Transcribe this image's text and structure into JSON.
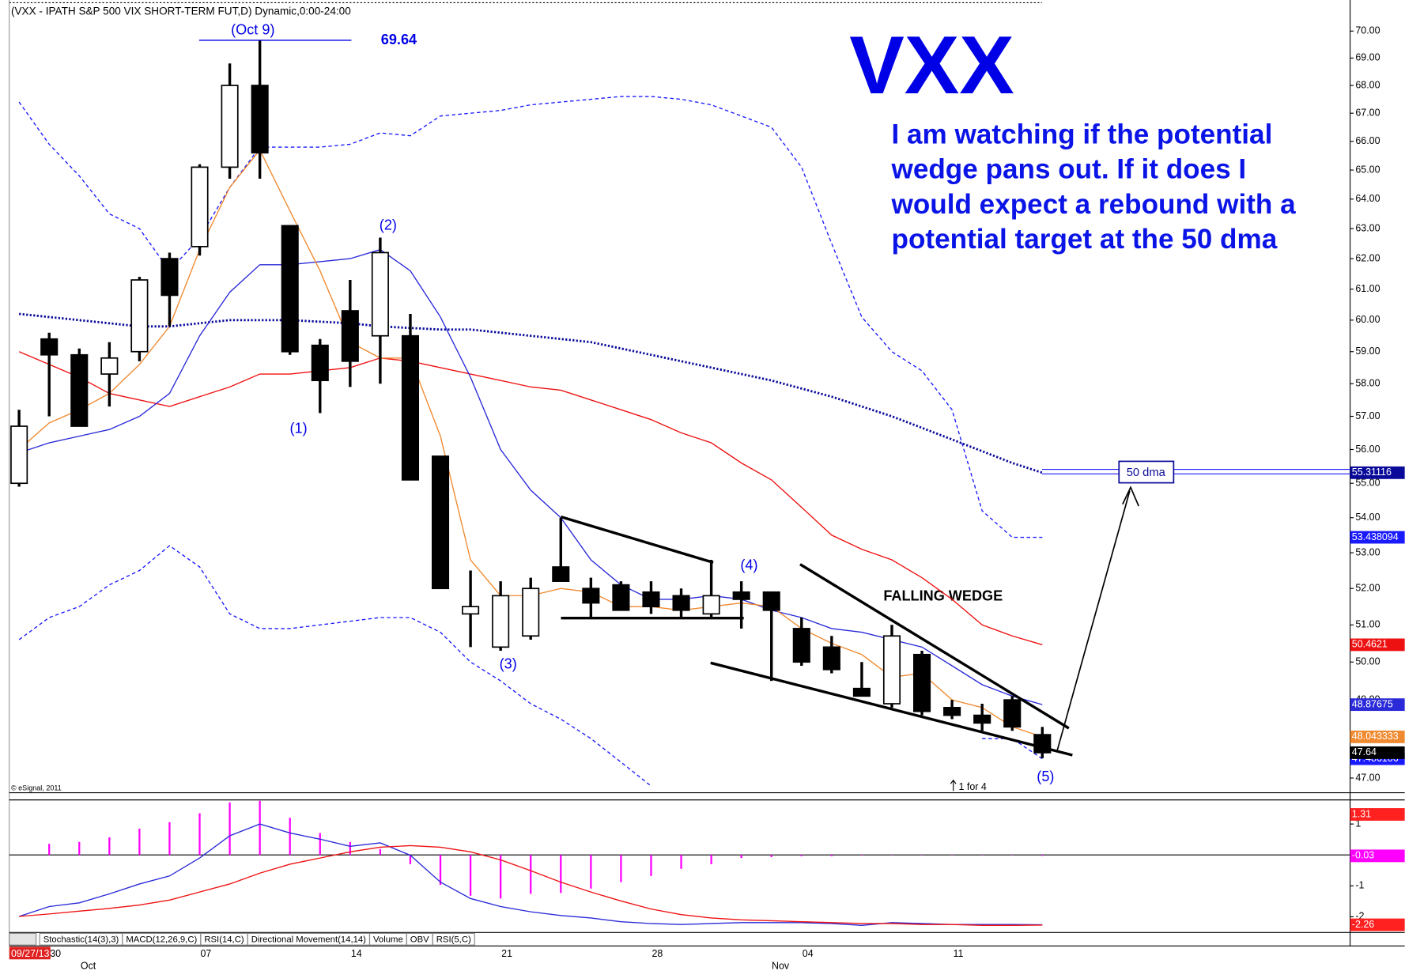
{
  "header": "(VXX - IPATH S&P 500 VIX SHORT-TERM FUT,D) Dynamic,0:00-24:00",
  "tabs": [
    "Stochastic(14(3),3)",
    "MACD(12,26,9,C)",
    "RSI(14,C)",
    "Directional Movement(14,14)",
    "Volume",
    "OBV",
    "RSI(5,C)"
  ],
  "copyright": "© eSignal, 2011",
  "chart_data": [
    {
      "type": "candlestick",
      "title": "VXX",
      "note_lines": [
        "I am watching if the potential",
        "wedge pans out. If it does I",
        "would expect a rebound with a",
        "potential target at the 50 dma"
      ],
      "annotations": {
        "peak": "(Oct 9)",
        "wave1": "(1)",
        "wave2": "(2)",
        "wave3": "(3)",
        "wave4": "(4)",
        "wave5": "(5)",
        "pattern": "FALLING WEDGE",
        "target": "50 dma",
        "split": "1 for 4"
      },
      "cursor_date": "09/27/13",
      "categories": [
        null,
        "30",
        null,
        null,
        null,
        null,
        "07",
        null,
        null,
        null,
        null,
        "14",
        null,
        null,
        null,
        null,
        "21",
        null,
        null,
        null,
        null,
        "28",
        null,
        null,
        null,
        null,
        "04",
        null,
        null,
        null,
        null,
        "11",
        null,
        null,
        null
      ],
      "months": [
        null,
        null,
        "Oct",
        null,
        null,
        null,
        null,
        null,
        null,
        null,
        null,
        null,
        null,
        null,
        null,
        null,
        null,
        null,
        null,
        null,
        null,
        null,
        null,
        null,
        null,
        "Nov",
        null,
        null,
        null,
        null,
        null,
        null,
        null,
        null,
        null
      ],
      "open": [
        55.0,
        59.4,
        58.9,
        58.3,
        59.0,
        62.0,
        62.4,
        65.1,
        68.0,
        63.1,
        59.2,
        60.3,
        59.5,
        59.5,
        55.8,
        51.3,
        50.4,
        50.7,
        52.6,
        52.0,
        52.1,
        51.9,
        51.8,
        51.3,
        51.9,
        51.9,
        50.9,
        50.4,
        49.3,
        48.9,
        50.2,
        48.8,
        48.6,
        49.0,
        48.1
      ],
      "high": [
        57.2,
        59.6,
        59.1,
        59.3,
        61.4,
        62.2,
        65.2,
        68.8,
        69.64,
        63.1,
        59.4,
        61.3,
        62.7,
        60.2,
        55.8,
        52.5,
        52.2,
        52.3,
        54.0,
        52.3,
        52.2,
        52.2,
        52.0,
        52.8,
        52.2,
        51.9,
        51.2,
        50.7,
        50.0,
        51.0,
        50.3,
        49.0,
        48.9,
        49.1,
        48.3
      ],
      "low": [
        54.9,
        57.0,
        56.7,
        57.3,
        58.7,
        59.8,
        62.1,
        64.7,
        64.7,
        58.9,
        57.1,
        57.9,
        58.0,
        55.1,
        52.0,
        50.4,
        50.3,
        50.6,
        52.2,
        51.2,
        51.4,
        51.3,
        51.2,
        51.2,
        50.9,
        49.5,
        49.9,
        49.7,
        49.1,
        48.8,
        48.6,
        48.5,
        48.2,
        48.2,
        47.5
      ],
      "close": [
        56.7,
        58.9,
        56.7,
        58.8,
        61.3,
        60.8,
        65.1,
        68.0,
        65.6,
        59.0,
        58.1,
        58.7,
        62.2,
        55.1,
        52.0,
        51.5,
        51.8,
        52.0,
        52.2,
        51.6,
        51.4,
        51.5,
        51.4,
        51.8,
        51.7,
        51.4,
        50.0,
        49.8,
        49.1,
        50.7,
        48.7,
        48.6,
        48.4,
        48.3,
        47.64
      ],
      "close_label_color": "#000000",
      "series": [
        {
          "color": "#1a1aff",
          "style": "dashed",
          "values": [
            67.4,
            65.9,
            64.8,
            63.5,
            63.0,
            61.6,
            62.7,
            64.4,
            65.8,
            65.8,
            65.8,
            65.9,
            66.3,
            66.2,
            66.9,
            67.0,
            67.1,
            67.3,
            67.4,
            67.5,
            67.6,
            67.6,
            67.5,
            67.3,
            66.9,
            66.5,
            65.1,
            62.5,
            60.1,
            59.0,
            58.4,
            57.2,
            54.2,
            53.438094,
            53.438094
          ]
        },
        {
          "color": "#1a1aff",
          "style": "dashed",
          "values": [
            50.6,
            51.2,
            51.5,
            52.1,
            52.5,
            53.2,
            52.6,
            51.3,
            50.9,
            50.9,
            51.0,
            51.1,
            51.2,
            51.2,
            50.8,
            50.0,
            49.5,
            48.9,
            48.5,
            48.0,
            47.4,
            46.8,
            null,
            null,
            null,
            null,
            null,
            null,
            null,
            null,
            null,
            null,
            48.0,
            48.0,
            47.486106
          ]
        },
        {
          "color": "#ee1111",
          "style": "solid",
          "values": [
            59.0,
            58.6,
            58.2,
            57.7,
            57.5,
            57.3,
            57.6,
            57.9,
            58.3,
            58.3,
            58.4,
            58.5,
            58.8,
            58.7,
            58.5,
            58.3,
            58.1,
            57.9,
            57.8,
            57.5,
            57.2,
            56.9,
            56.5,
            56.2,
            55.6,
            55.1,
            54.3,
            53.5,
            53.1,
            52.8,
            52.3,
            51.7,
            51.0,
            50.7,
            50.4621
          ]
        },
        {
          "color": "#2a2ad8",
          "style": "solid",
          "values": [
            55.9,
            56.2,
            56.4,
            56.6,
            57.0,
            57.7,
            59.5,
            60.9,
            61.8,
            61.8,
            61.9,
            62.0,
            62.3,
            61.6,
            60.1,
            58.2,
            56.0,
            54.8,
            54.0,
            52.8,
            52.1,
            51.7,
            51.7,
            51.8,
            51.7,
            51.4,
            51.2,
            50.9,
            50.8,
            50.6,
            50.4,
            49.9,
            49.4,
            49.1,
            48.87675
          ]
        },
        {
          "color": "#f08a30",
          "style": "solid",
          "values": [
            56.0,
            56.8,
            57.2,
            57.7,
            58.6,
            59.8,
            62.3,
            64.4,
            65.7,
            63.6,
            61.6,
            59.3,
            58.8,
            58.8,
            56.4,
            52.8,
            51.8,
            51.8,
            52.0,
            51.9,
            51.5,
            51.5,
            51.4,
            51.5,
            51.6,
            51.5,
            50.9,
            50.5,
            50.2,
            49.6,
            49.7,
            49.0,
            48.8,
            48.3,
            48.043333
          ]
        },
        {
          "color": "#0a0a9a",
          "style": "dotted",
          "values": [
            60.2,
            60.1,
            60.0,
            59.9,
            59.8,
            59.8,
            59.9,
            60.0,
            60.0,
            60.0,
            59.95,
            59.9,
            59.8,
            59.75,
            59.7,
            59.7,
            59.6,
            59.5,
            59.4,
            59.3,
            59.1,
            58.9,
            58.7,
            58.5,
            58.3,
            58.1,
            57.85,
            57.6,
            57.3,
            57.0,
            56.65,
            56.3,
            55.95,
            55.6,
            55.31116
          ]
        }
      ],
      "log_scale": true,
      "ylim": [
        46.7,
        71.0
      ],
      "yticks": [
        {
          "value": 47,
          "label": "47.00"
        },
        {
          "value": 48,
          "label": "48.00"
        },
        {
          "value": 49,
          "label": "49.00"
        },
        {
          "value": 50,
          "label": "50.00"
        },
        {
          "value": 51,
          "label": "51.00"
        },
        {
          "value": 52,
          "label": "52.00"
        },
        {
          "value": 53,
          "label": "53.00"
        },
        {
          "value": 54,
          "label": "54.00"
        },
        {
          "value": 55,
          "label": "55.00"
        },
        {
          "value": 56,
          "label": "56.00"
        },
        {
          "value": 57,
          "label": "57.00"
        },
        {
          "value": 58,
          "label": "58.00"
        },
        {
          "value": 59,
          "label": "59.00"
        },
        {
          "value": 60,
          "label": "60.00"
        },
        {
          "value": 61,
          "label": "61.00"
        },
        {
          "value": 62,
          "label": "62.00"
        },
        {
          "value": 63,
          "label": "63.00"
        },
        {
          "value": 64,
          "label": "64.00"
        },
        {
          "value": 65,
          "label": "65.00"
        },
        {
          "value": 66,
          "label": "66.00"
        },
        {
          "value": 67,
          "label": "67.00"
        },
        {
          "value": 68,
          "label": "68.00"
        },
        {
          "value": 69,
          "label": "69.00"
        },
        {
          "value": 70,
          "label": "70.00"
        }
      ]
    },
    {
      "type": "macd",
      "histogram": {
        "color": "#ff00ff",
        "values": [
          null,
          0.36,
          0.42,
          0.57,
          0.85,
          1.06,
          1.35,
          1.7,
          1.75,
          1.2,
          0.71,
          0.42,
          0.19,
          -0.3,
          -0.97,
          -1.32,
          -1.41,
          -1.26,
          -1.23,
          -1.09,
          -0.88,
          -0.68,
          -0.45,
          -0.3,
          -0.1,
          -0.07,
          -0.04,
          -0.04,
          -0.02,
          -0.01,
          -0.01,
          -0.01,
          -0.01,
          -0.01,
          -0.03
        ]
      },
      "series": [
        {
          "color": "#2a2ad8",
          "label_color": "#ff2020",
          "values": [
            -1.99,
            -1.67,
            -1.55,
            -1.26,
            -0.94,
            -0.68,
            -0.1,
            0.62,
            1.0,
            0.71,
            0.51,
            0.28,
            0.39,
            -0.01,
            -0.88,
            -1.41,
            -1.67,
            -1.84,
            -1.96,
            -2.04,
            -2.16,
            -2.22,
            -2.25,
            -2.22,
            -2.19,
            -2.19,
            -2.19,
            -2.22,
            -2.28,
            -2.19,
            -2.22,
            -2.25,
            -2.25,
            -2.25,
            -2.26
          ]
        },
        {
          "color": "#ee1111",
          "values": [
            -1.99,
            -1.91,
            -1.82,
            -1.73,
            -1.62,
            -1.46,
            -1.2,
            -0.94,
            -0.59,
            -0.3,
            -0.1,
            0.1,
            0.25,
            0.3,
            0.25,
            0.1,
            -0.16,
            -0.51,
            -0.88,
            -1.2,
            -1.49,
            -1.75,
            -1.93,
            -2.04,
            -2.1,
            -2.13,
            -2.16,
            -2.19,
            -2.22,
            -2.22,
            -2.25,
            -2.25,
            -2.28,
            -2.28,
            -2.27
          ]
        }
      ],
      "marker": 1.31,
      "marker_color": "#ff2020",
      "ylim": [
        -2.48,
        1.78
      ],
      "yticks": [
        1,
        -1,
        -2
      ]
    }
  ]
}
